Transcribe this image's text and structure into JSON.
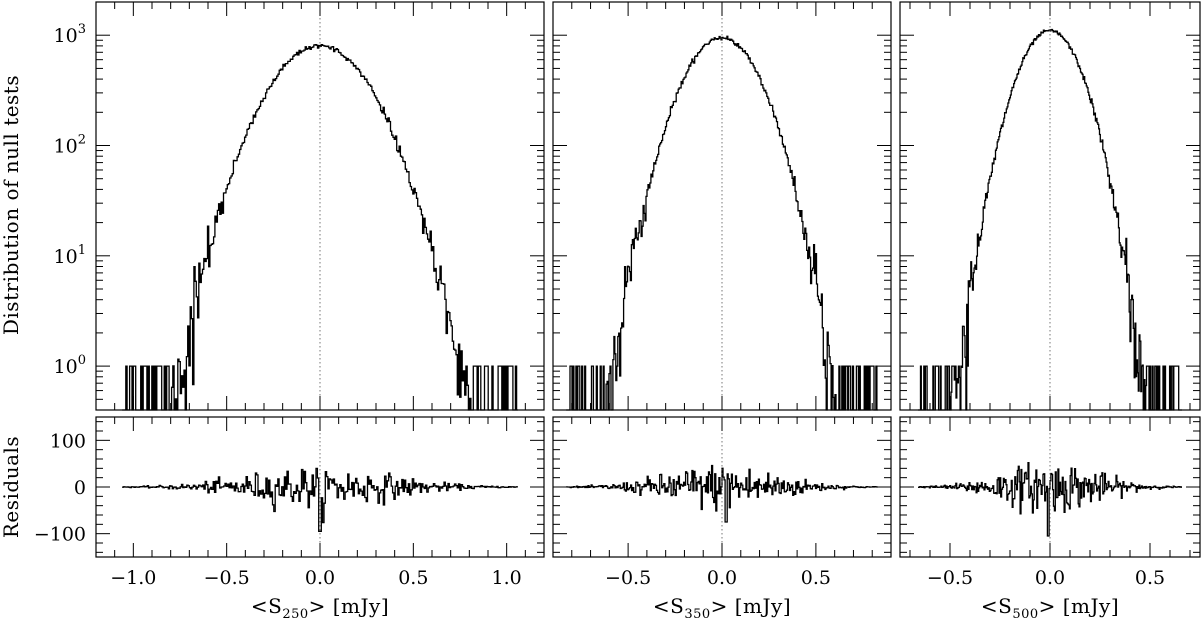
{
  "figure": {
    "ylabel_top": "Distribution of null tests",
    "ylabel_bottom": "Residuals"
  },
  "chart_data": [
    {
      "type": "line",
      "xlabel_main": "<S",
      "xlabel_sub": "250",
      "xlabel_tail": "> [mJy]",
      "xlim": [
        -1.2,
        1.2
      ],
      "xticks": [
        "-1.0",
        "-0.5",
        "0.0",
        "0.5",
        "1.0"
      ],
      "xtick_values": [
        -1.0,
        -0.5,
        0.0,
        0.5,
        1.0
      ],
      "top": {
        "yscale": "log",
        "ylim": [
          0.4,
          2000
        ],
        "yticks": [
          1,
          10,
          100,
          1000
        ],
        "ytick_base": "10",
        "ytick_exps": [
          "0",
          "1",
          "2",
          "3"
        ],
        "peak": 800,
        "sigma": 0.205,
        "support": [
          -1.06,
          1.06
        ]
      },
      "bottom": {
        "ylim": [
          -150,
          150
        ],
        "yticks": [
          "-100",
          "0",
          "100"
        ],
        "ytick_values": [
          -100,
          0,
          100
        ],
        "amp": 50,
        "range": [
          -1.06,
          1.06
        ],
        "spike": [
          0.0,
          -95
        ]
      }
    },
    {
      "type": "line",
      "xlabel_main": "<S",
      "xlabel_sub": "350",
      "xlabel_tail": "> [mJy]",
      "xlim": [
        -0.9,
        0.9
      ],
      "xticks": [
        "-0.5",
        "0.0",
        "0.5"
      ],
      "xtick_values": [
        -0.5,
        0.0,
        0.5
      ],
      "top": {
        "yscale": "log",
        "ylim": [
          0.4,
          2000
        ],
        "yticks": [
          1,
          10,
          100,
          1000
        ],
        "peak": 950,
        "sigma": 0.155,
        "support": [
          -0.83,
          0.83
        ]
      },
      "bottom": {
        "ylim": [
          -150,
          150
        ],
        "yticks": [
          -100,
          0,
          100
        ],
        "amp": 55,
        "range": [
          -0.83,
          0.83
        ],
        "spike": [
          0.02,
          -75
        ]
      }
    },
    {
      "type": "line",
      "xlabel_main": "<S",
      "xlabel_sub": "500",
      "xlabel_tail": "> [mJy]",
      "xlim": [
        -0.75,
        0.75
      ],
      "xticks": [
        "-0.5",
        "0.0",
        "0.5"
      ],
      "xtick_values": [
        -0.5,
        0.0,
        0.5
      ],
      "top": {
        "yscale": "log",
        "ylim": [
          0.4,
          2000
        ],
        "yticks": [
          1,
          10,
          100,
          1000
        ],
        "peak": 1100,
        "sigma": 0.12,
        "support": [
          -0.66,
          0.66
        ]
      },
      "bottom": {
        "ylim": [
          -150,
          150
        ],
        "yticks": [
          -100,
          0,
          100
        ],
        "amp": 60,
        "range": [
          -0.66,
          0.66
        ],
        "spike": [
          -0.01,
          -105
        ]
      }
    }
  ]
}
